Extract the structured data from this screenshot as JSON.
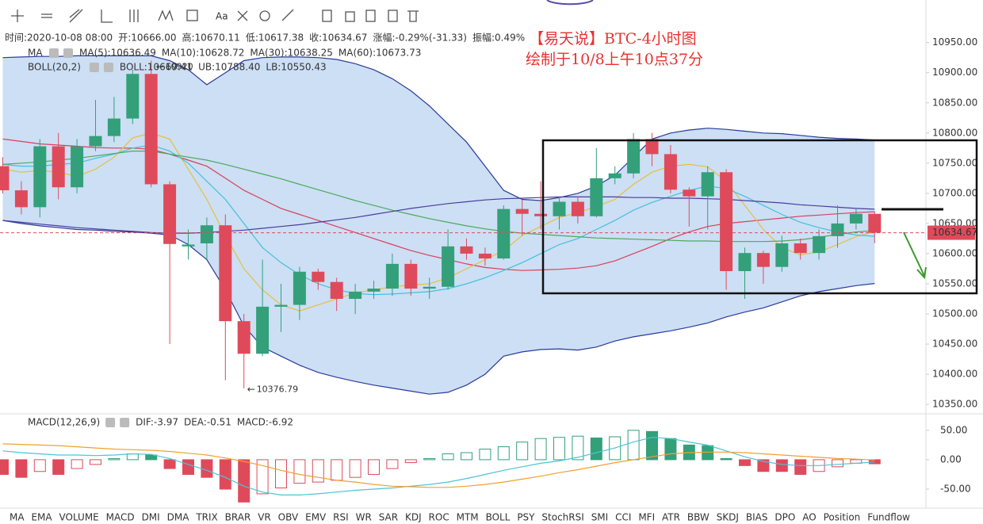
{
  "toolbar": {
    "text_tool": "Aa"
  },
  "annotation": {
    "lines": [
      "【易天说】BTC-4小时图",
      "绘制于10/8上午10点37分"
    ]
  },
  "tabs": {
    "items": [
      "MA",
      "EMA",
      "VOLUME",
      "MACD",
      "DMI",
      "DMA",
      "TRIX",
      "BRAR",
      "VR",
      "OBV",
      "EMV",
      "RSI",
      "WR",
      "SAR",
      "KDJ",
      "ROC",
      "MTM",
      "BOLL",
      "PSY",
      "StochRSI",
      "SMI",
      "CCI",
      "MFI",
      "ATR",
      "BBW",
      "SKDJ",
      "BIAS",
      "DPO",
      "AO",
      "Position",
      "Fundflow"
    ],
    "selected": 3,
    "selected_color": "#2a7ae2"
  },
  "chart_data": [
    {
      "type": "candlestick",
      "info": [
        {
          "label": "时间:",
          "value": "2020-10-08 08:00"
        },
        {
          "label": "开:",
          "value": "10666.00"
        },
        {
          "label": "高:",
          "value": "10670.11"
        },
        {
          "label": "低:",
          "value": "10617.38"
        },
        {
          "label": "收:",
          "value": "10634.67"
        },
        {
          "label": "涨幅:",
          "value": "-0.29%(-31.33)"
        },
        {
          "label": "振幅:",
          "value": "0.49%"
        }
      ],
      "ma_title": "MA",
      "boll_title": "BOLL(20,2)",
      "up_color": "#33a07a",
      "down_color": "#df4a5b",
      "band_color": "#c6dbf3",
      "open": [
        10745,
        10705,
        10677,
        10778,
        10710,
        10778,
        10795,
        10824,
        10898,
        10715,
        10612,
        10617,
        10647,
        10488,
        10434,
        10512,
        10515,
        10570,
        10553,
        10525,
        10537,
        10542,
        10583,
        10542,
        10545,
        10612,
        10600,
        10592,
        10674,
        10666,
        10662,
        10686,
        10662,
        10725,
        10733,
        10790,
        10765,
        10706,
        10695,
        10735,
        10571,
        10601,
        10578,
        10617,
        10601,
        10629,
        10650,
        10666
      ],
      "high": [
        10760,
        10720,
        10790,
        10800,
        10790,
        10855,
        10860,
        10905,
        10920,
        10720,
        10640,
        10660,
        10665,
        10500,
        10590,
        10550,
        10578,
        10575,
        10560,
        10550,
        10555,
        10600,
        10590,
        10560,
        10640,
        10625,
        10610,
        10680,
        10690,
        10720,
        10695,
        10695,
        10775,
        10745,
        10800,
        10800,
        10780,
        10710,
        10745,
        10740,
        10610,
        10605,
        10630,
        10625,
        10640,
        10680,
        10675,
        10670.11
      ],
      "low": [
        10700,
        10665,
        10660,
        10690,
        10700,
        10770,
        10785,
        10815,
        10710,
        10450,
        10590,
        10590,
        10390,
        10376.79,
        10430,
        10470,
        10490,
        10540,
        10505,
        10500,
        10525,
        10530,
        10530,
        10525,
        10540,
        10590,
        10580,
        10590,
        10630,
        10640,
        10640,
        10650,
        10660,
        10715,
        10725,
        10745,
        10700,
        10645,
        10640,
        10540,
        10525,
        10550,
        10570,
        10590,
        10590,
        10610,
        10640,
        10617.38
      ],
      "close": [
        10705,
        10677,
        10778,
        10710,
        10778,
        10795,
        10824,
        10898,
        10715,
        10616,
        10615,
        10647,
        10488,
        10434,
        10512,
        10515,
        10570,
        10553,
        10525,
        10537,
        10542,
        10583,
        10542,
        10545,
        10612,
        10600,
        10592,
        10674,
        10666,
        10662,
        10686,
        10662,
        10725,
        10733,
        10790,
        10765,
        10706,
        10695,
        10735,
        10571,
        10601,
        10578,
        10617,
        10601,
        10629,
        10650,
        10666,
        10634.67
      ],
      "overlays": [
        {
          "name": "MA(5):10636.49",
          "color": "#e6c03c",
          "values": [
            10740,
            10735,
            10738,
            10735,
            10728,
            10740,
            10760,
            10792,
            10800,
            10790,
            10740,
            10690,
            10630,
            10575,
            10540,
            10515,
            10505,
            10515,
            10525,
            10535,
            10540,
            10545,
            10548,
            10550,
            10560,
            10575,
            10590,
            10605,
            10630,
            10645,
            10660,
            10668,
            10678,
            10690,
            10715,
            10735,
            10745,
            10748,
            10744,
            10720,
            10680,
            10640,
            10610,
            10598,
            10603,
            10615,
            10628,
            10636.49
          ]
        },
        {
          "name": "MA(10):10628.72",
          "color": "#45bfdc",
          "values": [
            10748,
            10745,
            10745,
            10748,
            10750,
            10758,
            10765,
            10775,
            10780,
            10770,
            10750,
            10720,
            10690,
            10650,
            10610,
            10585,
            10565,
            10550,
            10540,
            10534,
            10532,
            10533,
            10535,
            10537,
            10542,
            10550,
            10560,
            10572,
            10585,
            10600,
            10615,
            10625,
            10640,
            10655,
            10672,
            10685,
            10695,
            10705,
            10712,
            10708,
            10695,
            10680,
            10665,
            10652,
            10643,
            10636,
            10631,
            10628.72
          ]
        },
        {
          "name": "MA(30):10638.25",
          "color": "#4caa5a",
          "values": [
            10748,
            10750,
            10752,
            10755,
            10758,
            10762,
            10766,
            10770,
            10770,
            10765,
            10760,
            10755,
            10748,
            10740,
            10732,
            10724,
            10715,
            10706,
            10697,
            10688,
            10680,
            10672,
            10665,
            10658,
            10652,
            10646,
            10641,
            10637,
            10634,
            10632,
            10630,
            10628,
            10626,
            10625,
            10624,
            10623,
            10622,
            10621,
            10621,
            10620,
            10620,
            10620,
            10621,
            10623,
            10627,
            10632,
            10636,
            10638.25
          ]
        },
        {
          "name": "MA(60):10673.73",
          "color": "#4b3b9e",
          "values": [
            10655,
            10652,
            10649,
            10646,
            10643,
            10641,
            10639,
            10637,
            10635,
            10634,
            10634,
            10635,
            10637,
            10639,
            10642,
            10645,
            10648,
            10652,
            10656,
            10660,
            10665,
            10670,
            10675,
            10679,
            10683,
            10686,
            10689,
            10691,
            10692,
            10693,
            10694,
            10694,
            10694,
            10694,
            10693,
            10693,
            10692,
            10692,
            10691,
            10690,
            10688,
            10686,
            10684,
            10681,
            10679,
            10677,
            10675,
            10673.73
          ]
        }
      ],
      "boll": [
        {
          "name": "BOLL:10669.41",
          "color": "#d9405a",
          "values": [
            10790,
            10786,
            10782,
            10780,
            10778,
            10776,
            10775,
            10775,
            10773,
            10765,
            10755,
            10745,
            10725,
            10705,
            10690,
            10675,
            10665,
            10655,
            10645,
            10635,
            10625,
            10615,
            10605,
            10597,
            10590,
            10583,
            10577,
            10574,
            10572,
            10573,
            10574,
            10576,
            10580,
            10588,
            10600,
            10612,
            10625,
            10636,
            10645,
            10650,
            10653,
            10656,
            10659,
            10662,
            10664,
            10666,
            10668,
            10669.41
          ]
        },
        {
          "name": "UB:10788.40",
          "color": "#2b3a9a",
          "values": [
            10925,
            10926,
            10927,
            10927,
            10928,
            10928,
            10928,
            10928,
            10928,
            10920,
            10905,
            10880,
            10900,
            10920,
            10925,
            10926,
            10926,
            10925,
            10922,
            10915,
            10905,
            10890,
            10870,
            10845,
            10815,
            10785,
            10745,
            10705,
            10690,
            10688,
            10693,
            10700,
            10712,
            10730,
            10760,
            10790,
            10800,
            10805,
            10808,
            10806,
            10803,
            10800,
            10799,
            10796,
            10793,
            10791,
            10790,
            10788.4
          ]
        },
        {
          "name": "LB:10550.43",
          "color": "#2b3a9a",
          "values": [
            10655,
            10650,
            10646,
            10643,
            10640,
            10639,
            10637,
            10636,
            10634,
            10631,
            10615,
            10590,
            10540,
            10480,
            10445,
            10430,
            10415,
            10403,
            10395,
            10388,
            10382,
            10377,
            10372,
            10367,
            10370,
            10382,
            10400,
            10430,
            10437,
            10441,
            10442,
            10440,
            10445,
            10455,
            10462,
            10467,
            10472,
            10478,
            10485,
            10495,
            10503,
            10510,
            10520,
            10530,
            10537,
            10542,
            10547,
            10550.43
          ]
        }
      ],
      "max_label": 10920,
      "min_label": 10376.79,
      "last_price": 10634.67,
      "ylim": [
        10337,
        10968
      ],
      "yticks": [
        {
          "value": 10350,
          "label": "10350.00"
        },
        {
          "value": 10400,
          "label": "10400.00"
        },
        {
          "value": 10450,
          "label": "10450.00"
        },
        {
          "value": 10500,
          "label": "10500.00"
        },
        {
          "value": 10550,
          "label": "10550.00"
        },
        {
          "value": 10600,
          "label": "10600.00"
        },
        {
          "value": 10650,
          "label": "10650.00"
        },
        {
          "value": 10700,
          "label": "10700.00"
        },
        {
          "value": 10750,
          "label": "10750.00"
        },
        {
          "value": 10800,
          "label": "10800.00"
        },
        {
          "value": 10850,
          "label": "10850.00"
        },
        {
          "value": 10900,
          "label": "10900.00"
        },
        {
          "value": 10950,
          "label": "10950.00"
        }
      ]
    },
    {
      "type": "macd",
      "title": "MACD(12,26,9)",
      "name": "MACD:-6.92",
      "up_color": "#33a07a",
      "down_color": "#df4a5b",
      "values": [
        -25,
        -30,
        -20,
        -25,
        -15,
        -8,
        2,
        10,
        8,
        -15,
        -25,
        -30,
        -50,
        -72,
        -58,
        -48,
        -40,
        -38,
        -35,
        -30,
        -25,
        -15,
        -5,
        2,
        10,
        12,
        18,
        22,
        30,
        36,
        38,
        40,
        37,
        39,
        50,
        48,
        36,
        25,
        24,
        2,
        -10,
        -20,
        -20,
        -25,
        -20,
        -12,
        -6,
        -6.92
      ],
      "series": [
        {
          "name": "DIF:-3.97",
          "color": "#4cc4d6",
          "values": [
            15,
            12,
            10,
            8,
            8,
            7,
            8,
            10,
            9,
            2,
            -8,
            -18,
            -30,
            -45,
            -55,
            -60,
            -60,
            -58,
            -55,
            -52,
            -50,
            -48,
            -45,
            -42,
            -38,
            -32,
            -25,
            -18,
            -12,
            -6,
            -2,
            4,
            12,
            20,
            30,
            38,
            36,
            30,
            25,
            15,
            5,
            -3,
            -8,
            -10,
            -10,
            -8,
            -6,
            -3.97
          ]
        },
        {
          "name": "DEA:-0.51",
          "color": "#f0a030",
          "values": [
            27,
            26,
            25,
            24,
            22,
            20,
            18,
            17,
            16,
            14,
            11,
            8,
            3,
            -3,
            -10,
            -18,
            -25,
            -30,
            -35,
            -38,
            -42,
            -45,
            -46,
            -47,
            -47,
            -45,
            -42,
            -38,
            -33,
            -28,
            -22,
            -17,
            -11,
            -5,
            0,
            5,
            10,
            12,
            13,
            13,
            12,
            10,
            8,
            6,
            4,
            2,
            1,
            -0.51
          ]
        }
      ],
      "ylim": [
        -81,
        74
      ],
      "yticks": [
        {
          "value": 50,
          "label": "50.00"
        },
        {
          "value": 0,
          "label": "0.00"
        },
        {
          "value": -50,
          "label": "-50.00"
        }
      ]
    }
  ]
}
